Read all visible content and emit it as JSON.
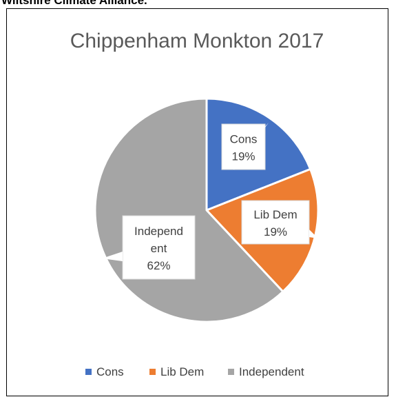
{
  "document": {
    "header_text": "Wiltshire Climate Alliance."
  },
  "chart_data": {
    "type": "pie",
    "title": "Chippenham Monkton 2017",
    "slices": [
      {
        "label": "Cons",
        "value": 19,
        "color": "#4472C4",
        "data_label_lines": [
          "Cons",
          "19%"
        ]
      },
      {
        "label": "Lib Dem",
        "value": 19,
        "color": "#ED7D31",
        "data_label_lines": [
          "Lib Dem",
          "19%"
        ]
      },
      {
        "label": "Independent",
        "value": 62,
        "color": "#A5A5A5",
        "data_label_lines": [
          "Independ",
          "ent",
          "62%"
        ]
      }
    ],
    "legend": {
      "position": "bottom",
      "entries": [
        "Cons",
        "Lib Dem",
        "Independent"
      ]
    },
    "start_angle": "12 o'clock, clockwise"
  }
}
